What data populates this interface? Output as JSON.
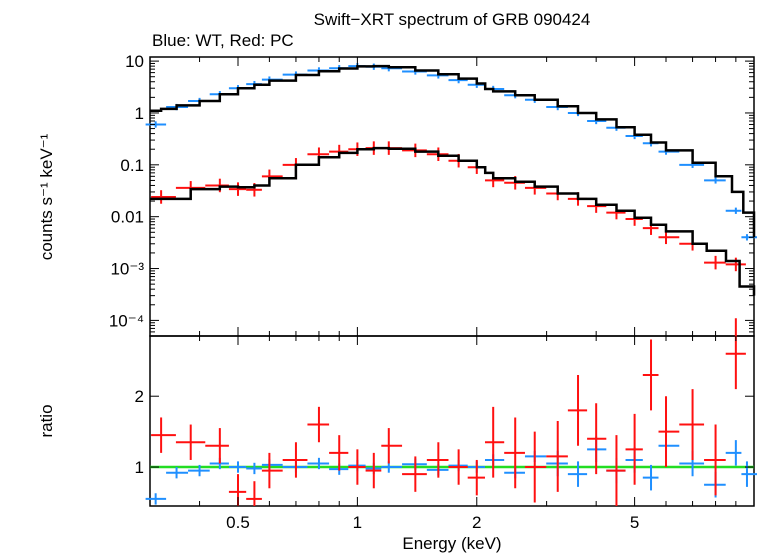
{
  "chart_data": {
    "type": "scatter",
    "title": "Swift−XRT spectrum of GRB 090424",
    "subtitle": "Blue: WT, Red: PC",
    "xlabel": "Energy (keV)",
    "x_scale": "log",
    "x_range": [
      0.3,
      10
    ],
    "x_ticks": [
      {
        "value": 0.5,
        "label": "0.5"
      },
      {
        "value": 1,
        "label": "1"
      },
      {
        "value": 2,
        "label": "2"
      },
      {
        "value": 5,
        "label": "5"
      }
    ],
    "panels": [
      {
        "name": "spectrum",
        "ylabel": "counts s⁻¹ keV⁻¹",
        "y_scale": "log",
        "y_range": [
          5e-05,
          12
        ],
        "y_ticks": [
          {
            "value": 10,
            "label": "10"
          },
          {
            "value": 1,
            "label": "1"
          },
          {
            "value": 0.1,
            "label": "0.1"
          },
          {
            "value": 0.01,
            "label": "0.01"
          },
          {
            "value": 0.001,
            "label": "10⁻³"
          },
          {
            "value": 0.0001,
            "label": "10⁻⁴"
          }
        ],
        "series": [
          {
            "name": "WT",
            "color": "#1f8fff",
            "kind": "points",
            "x": [
              0.31,
              0.35,
              0.4,
              0.45,
              0.5,
              0.55,
              0.6,
              0.7,
              0.8,
              0.9,
              1.0,
              1.1,
              1.2,
              1.4,
              1.6,
              1.8,
              2.0,
              2.2,
              2.5,
              2.8,
              3.2,
              3.6,
              4.0,
              4.5,
              5.0,
              5.5,
              6.0,
              7.0,
              8.0,
              9.0,
              9.6
            ],
            "y": [
              0.6,
              1.3,
              1.7,
              2.3,
              3.0,
              3.6,
              4.4,
              5.5,
              6.6,
              7.3,
              8.0,
              7.8,
              7.3,
              6.3,
              5.3,
              4.3,
              3.5,
              2.9,
              2.2,
              1.8,
              1.3,
              1.0,
              0.7,
              0.52,
              0.36,
              0.26,
              0.18,
              0.1,
              0.05,
              0.013,
              0.004
            ]
          },
          {
            "name": "PC",
            "color": "#ff1010",
            "kind": "points",
            "x": [
              0.32,
              0.38,
              0.45,
              0.5,
              0.55,
              0.6,
              0.7,
              0.8,
              0.9,
              1.0,
              1.1,
              1.2,
              1.4,
              1.6,
              1.8,
              2.0,
              2.2,
              2.5,
              2.8,
              3.2,
              3.6,
              4.0,
              4.5,
              5.0,
              5.5,
              6.0,
              7.0,
              8.0,
              9.0
            ],
            "y": [
              0.024,
              0.036,
              0.04,
              0.034,
              0.033,
              0.06,
              0.1,
              0.16,
              0.18,
              0.2,
              0.21,
              0.21,
              0.19,
              0.16,
              0.12,
              0.09,
              0.05,
              0.045,
              0.036,
              0.028,
              0.022,
              0.016,
              0.012,
              0.009,
              0.006,
              0.004,
              0.003,
              0.0013,
              0.0012
            ]
          },
          {
            "name": "WT model",
            "color": "#000000",
            "kind": "step",
            "x": [
              0.3,
              0.32,
              0.35,
              0.4,
              0.45,
              0.5,
              0.55,
              0.6,
              0.7,
              0.8,
              0.9,
              1.0,
              1.1,
              1.2,
              1.4,
              1.6,
              1.8,
              2.0,
              2.1,
              2.2,
              2.5,
              2.8,
              3.2,
              3.6,
              4.0,
              4.5,
              5.0,
              5.5,
              6.0,
              7.0,
              8.0,
              8.8,
              9.4,
              10
            ],
            "y": [
              1.1,
              1.2,
              1.4,
              1.7,
              2.3,
              3.0,
              3.5,
              4.2,
              5.4,
              6.4,
              7.2,
              7.9,
              8.0,
              7.6,
              6.6,
              5.6,
              4.6,
              3.7,
              2.9,
              2.6,
              2.2,
              1.8,
              1.35,
              1.0,
              0.75,
              0.53,
              0.38,
              0.27,
              0.19,
              0.11,
              0.06,
              0.03,
              0.012,
              0.004
            ]
          },
          {
            "name": "PC model",
            "color": "#000000",
            "kind": "step",
            "x": [
              0.3,
              0.38,
              0.45,
              0.5,
              0.55,
              0.6,
              0.7,
              0.8,
              0.9,
              1.0,
              1.1,
              1.2,
              1.4,
              1.6,
              1.8,
              2.0,
              2.1,
              2.2,
              2.5,
              2.8,
              3.2,
              3.6,
              4.0,
              4.5,
              5.0,
              5.5,
              6.0,
              7.0,
              7.6,
              8.5,
              9.2,
              10
            ],
            "y": [
              0.022,
              0.034,
              0.038,
              0.037,
              0.04,
              0.055,
              0.1,
              0.14,
              0.17,
              0.2,
              0.21,
              0.205,
              0.18,
              0.15,
              0.12,
              0.09,
              0.07,
              0.055,
              0.047,
              0.038,
              0.028,
              0.022,
              0.017,
              0.013,
              0.0095,
              0.007,
              0.0052,
              0.003,
              0.0022,
              0.0014,
              0.00045,
              0.0003
            ]
          }
        ]
      },
      {
        "name": "ratio",
        "ylabel": "ratio",
        "y_scale": "linear",
        "y_range": [
          0.45,
          2.85
        ],
        "y_ticks": [
          {
            "value": 1,
            "label": "1"
          },
          {
            "value": 2,
            "label": "2"
          }
        ],
        "reference_line": {
          "value": 1,
          "color": "#22dd22"
        },
        "series": [
          {
            "name": "WT",
            "color": "#1f8fff",
            "kind": "points",
            "x": [
              0.31,
              0.35,
              0.4,
              0.45,
              0.5,
              0.55,
              0.6,
              0.7,
              0.8,
              0.9,
              1.0,
              1.1,
              1.2,
              1.4,
              1.6,
              1.8,
              2.0,
              2.2,
              2.5,
              2.8,
              3.2,
              3.6,
              4.0,
              4.5,
              5.0,
              5.5,
              6.0,
              7.0,
              8.0,
              9.0,
              9.6
            ],
            "y": [
              0.55,
              0.92,
              0.95,
              1.05,
              1.0,
              0.98,
              1.03,
              1.0,
              1.05,
              0.97,
              1.02,
              0.98,
              1.0,
              1.04,
              0.96,
              1.02,
              1.0,
              1.1,
              0.92,
              1.15,
              1.05,
              0.9,
              1.25,
              0.95,
              1.1,
              0.85,
              1.3,
              1.05,
              0.75,
              1.2,
              0.9
            ]
          },
          {
            "name": "PC",
            "color": "#ff1010",
            "kind": "points",
            "x": [
              0.32,
              0.38,
              0.45,
              0.5,
              0.55,
              0.6,
              0.7,
              0.8,
              0.9,
              1.0,
              1.1,
              1.2,
              1.4,
              1.6,
              1.8,
              2.0,
              2.2,
              2.5,
              2.8,
              3.2,
              3.6,
              4.0,
              4.5,
              5.0,
              5.5,
              6.0,
              7.0,
              8.0,
              9.0
            ],
            "y": [
              1.45,
              1.35,
              1.3,
              0.65,
              0.55,
              0.95,
              1.1,
              1.6,
              1.2,
              1.0,
              0.95,
              1.3,
              0.9,
              1.1,
              1.0,
              0.85,
              1.35,
              1.2,
              1.0,
              1.15,
              1.8,
              1.4,
              0.95,
              1.25,
              2.3,
              1.5,
              1.6,
              1.1,
              2.6
            ]
          }
        ]
      }
    ]
  }
}
